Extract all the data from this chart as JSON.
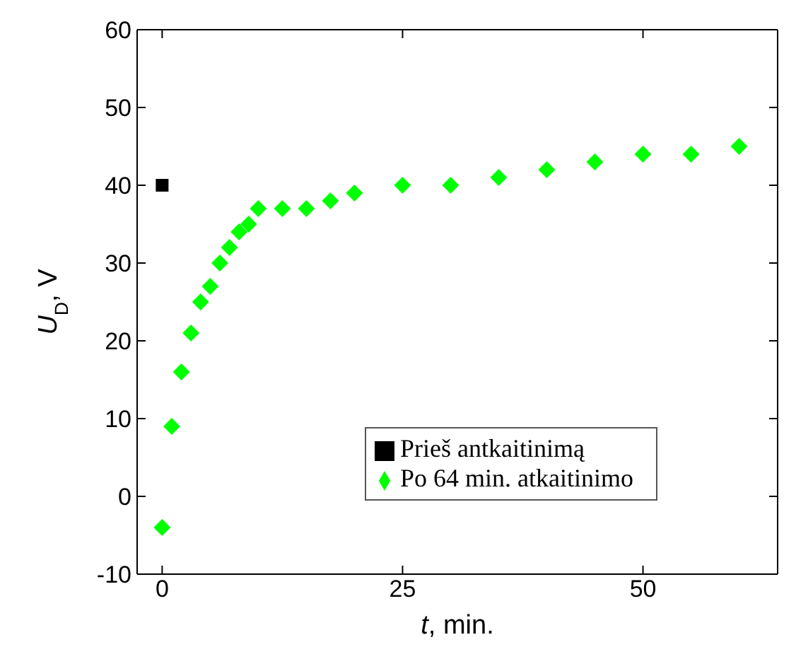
{
  "chart_data": {
    "type": "scatter",
    "xlabel": "t, min.",
    "ylabel": "U$_{D}$, V",
    "xlim": [
      -2.6,
      64
    ],
    "xticks": [
      0,
      25,
      50
    ],
    "ylim": [
      -10,
      60
    ],
    "yticks": [
      -10,
      0,
      10,
      20,
      30,
      40,
      50,
      60
    ],
    "grid": false,
    "legend": "bottom right",
    "series": [
      {
        "name": "Prieš antkaitinimą",
        "color": "#000000",
        "marker": "square",
        "x": [
          0
        ],
        "values": [
          40
        ]
      },
      {
        "name": "Po 64 min. atkaitinimo",
        "color": "#00ff00",
        "marker": "diamond",
        "x": [
          0,
          1,
          2,
          3,
          4,
          5,
          6,
          7,
          8,
          9,
          10,
          12.5,
          15,
          17.5,
          20,
          25,
          30,
          35,
          40,
          45,
          50,
          55,
          60
        ],
        "values": [
          -4,
          9,
          16,
          21,
          25,
          27,
          30,
          32,
          34,
          35,
          37,
          37,
          37,
          38,
          39,
          40,
          40,
          41,
          42,
          43,
          44,
          44,
          45
        ]
      }
    ]
  }
}
